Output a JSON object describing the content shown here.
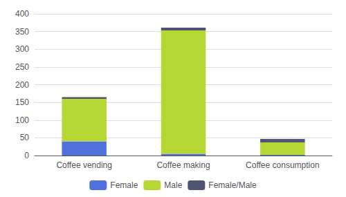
{
  "chart_data": {
    "type": "bar",
    "stacked": true,
    "categories": [
      "Coffee vending",
      "Coffee making",
      "Coffee consumption"
    ],
    "series": [
      {
        "name": "Female",
        "values": [
          40,
          5,
          2
        ]
      },
      {
        "name": "Male",
        "values": [
          120,
          348,
          35
        ]
      },
      {
        "name": "Female/Male",
        "values": [
          5,
          8,
          10
        ]
      }
    ],
    "ylim": [
      0,
      400
    ],
    "yticks": [
      0,
      50,
      100,
      150,
      200,
      250,
      300,
      350,
      400
    ],
    "grid": true,
    "legend": "bottom"
  }
}
